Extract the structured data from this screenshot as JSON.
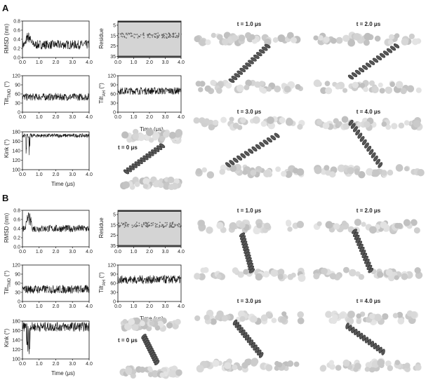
{
  "figure": {
    "panel_a": "A",
    "panel_b": "B",
    "time_label": "Time (μs)",
    "rmsd_label": "RMSD (nm)",
    "residue_label": "Residue",
    "tilt_tmd_label": "Tilt",
    "tilt_tmd_sub": "TMD",
    "tilt_ah_label": "Tilt",
    "tilt_ah_sub": "AH",
    "degree_unit": " (°)",
    "kink_label": "Kink (°)",
    "snapshots": [
      "t = 0 μs",
      "t = 1.0 μs",
      "t = 2.0 μs",
      "t = 3.0 μs",
      "t = 4.0 μs"
    ]
  },
  "chart_data": [
    {
      "panel": "A",
      "type": "line",
      "ylabel": "RMSD (nm)",
      "xlabel": "",
      "x_ticks": [
        "0.0",
        "1.0",
        "2.0",
        "3.0",
        "4.0"
      ],
      "y_ticks": [
        "0.0",
        "0.2",
        "0.4",
        "0.6",
        "0.8"
      ],
      "xlim": [
        0,
        4
      ],
      "ylim": [
        0,
        0.8
      ],
      "mean": 0.28,
      "amp": 0.1,
      "early_peak": 0.5
    },
    {
      "panel": "A",
      "type": "heatmap",
      "ylabel": "Residue",
      "xlabel": "",
      "x_ticks": [
        "0.0",
        "1.0",
        "2.0",
        "3.0",
        "4.0"
      ],
      "y_ticks": [
        "5",
        "15",
        "25",
        "35"
      ],
      "xlim": [
        0,
        4
      ],
      "ylim": [
        1,
        36
      ]
    },
    {
      "panel": "A",
      "type": "line",
      "ylabel": "TMD tilt",
      "xlabel": "",
      "x_ticks": [
        "0.0",
        "1.0",
        "2.0",
        "3.0",
        "4.0"
      ],
      "y_ticks": [
        "0",
        "30",
        "60",
        "90",
        "120"
      ],
      "xlim": [
        0,
        4
      ],
      "ylim": [
        0,
        120
      ],
      "mean": 50,
      "amp": 12
    },
    {
      "panel": "A",
      "type": "line",
      "ylabel": "AH tilt",
      "xlabel": "Time (μs)",
      "x_ticks": [
        "0.0",
        "1.0",
        "2.0",
        "3.0",
        "4.0"
      ],
      "y_ticks": [
        "0",
        "30",
        "60",
        "90",
        "120"
      ],
      "xlim": [
        0,
        4
      ],
      "ylim": [
        0,
        120
      ],
      "mean": 70,
      "amp": 12
    },
    {
      "panel": "A",
      "type": "line",
      "ylabel": "Kink (°)",
      "xlabel": "Time (μs)",
      "x_ticks": [
        "0.0",
        "1.0",
        "2.0",
        "3.0",
        "4.0"
      ],
      "y_ticks": [
        "100",
        "120",
        "140",
        "160",
        "180"
      ],
      "xlim": [
        0,
        4
      ],
      "ylim": [
        100,
        180
      ],
      "mean": 172,
      "amp": 4,
      "dip": 125
    },
    {
      "panel": "B",
      "type": "line",
      "ylabel": "RMSD (nm)",
      "xlabel": "",
      "x_ticks": [
        "0.0",
        "1.0",
        "2.0",
        "3.0",
        "4.0"
      ],
      "y_ticks": [
        "0.0",
        "0.2",
        "0.4",
        "0.6",
        "0.8"
      ],
      "xlim": [
        0,
        4
      ],
      "ylim": [
        0,
        0.8
      ],
      "mean": 0.4,
      "amp": 0.08,
      "early_peak": 0.7
    },
    {
      "panel": "B",
      "type": "heatmap",
      "ylabel": "Residue",
      "xlabel": "",
      "x_ticks": [
        "0.0",
        "1.0",
        "2.0",
        "3.0",
        "4.0"
      ],
      "y_ticks": [
        "5",
        "15",
        "25",
        "35"
      ],
      "xlim": [
        0,
        4
      ],
      "ylim": [
        1,
        36
      ]
    },
    {
      "panel": "B",
      "type": "line",
      "ylabel": "TMD tilt",
      "xlabel": "",
      "x_ticks": [
        "0.0",
        "1.0",
        "2.0",
        "3.0",
        "4.0"
      ],
      "y_ticks": [
        "0",
        "30",
        "60",
        "90",
        "120"
      ],
      "xlim": [
        0,
        4
      ],
      "ylim": [
        0,
        120
      ],
      "mean": 40,
      "amp": 14
    },
    {
      "panel": "B",
      "type": "line",
      "ylabel": "AH tilt",
      "xlabel": "Time (μs)",
      "x_ticks": [
        "0.0",
        "1.0",
        "2.0",
        "3.0",
        "4.0"
      ],
      "y_ticks": [
        "0",
        "30",
        "60",
        "90",
        "120"
      ],
      "xlim": [
        0,
        4
      ],
      "ylim": [
        0,
        120
      ],
      "mean": 72,
      "amp": 14
    },
    {
      "panel": "B",
      "type": "line",
      "ylabel": "Kink (°)",
      "xlabel": "Time (μs)",
      "x_ticks": [
        "0.0",
        "1.0",
        "2.0",
        "3.0",
        "4.0"
      ],
      "y_ticks": [
        "100",
        "120",
        "140",
        "160",
        "180"
      ],
      "xlim": [
        0,
        4
      ],
      "ylim": [
        100,
        180
      ],
      "mean": 168,
      "amp": 10,
      "dip": 110
    }
  ]
}
